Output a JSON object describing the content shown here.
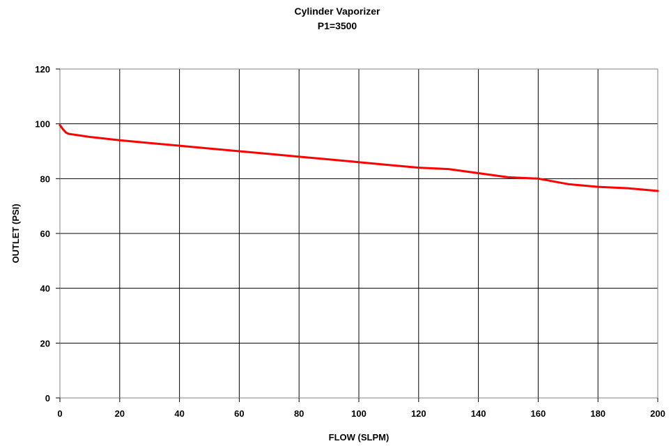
{
  "chart_data": {
    "type": "line",
    "title": "Cylinder Vaporizer",
    "subtitle": "P1=3500",
    "xlabel": "FLOW (SLPM)",
    "ylabel": "OUTLET (PSI)",
    "xlim": [
      0,
      200
    ],
    "ylim": [
      0,
      120
    ],
    "xticks": [
      0,
      20,
      40,
      60,
      80,
      100,
      120,
      140,
      160,
      180,
      200
    ],
    "yticks": [
      0,
      20,
      40,
      60,
      80,
      100,
      120
    ],
    "grid": true,
    "series": [
      {
        "color": "#ff0000",
        "x": [
          0,
          1,
          2,
          3,
          5,
          10,
          20,
          30,
          40,
          50,
          60,
          70,
          80,
          90,
          100,
          110,
          120,
          130,
          140,
          150,
          160,
          170,
          180,
          190,
          200
        ],
        "y": [
          99.5,
          98,
          96.8,
          96.3,
          96,
          95.2,
          94,
          93,
          92,
          91,
          90,
          89,
          88,
          87,
          86,
          85,
          84,
          83.5,
          82,
          80.5,
          80,
          78,
          77,
          76.5,
          75.5
        ]
      }
    ]
  }
}
